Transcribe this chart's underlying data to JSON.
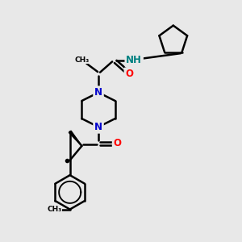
{
  "bg_color": "#e8e8e8",
  "atom_colors": {
    "N": "#0000cc",
    "O": "#ff0000",
    "NH": "#008080",
    "C": "#000000"
  },
  "bond_color": "#000000",
  "bond_width": 1.8,
  "font_size_atom": 8.5,
  "fig_size": [
    3.0,
    3.0
  ],
  "dpi": 100
}
